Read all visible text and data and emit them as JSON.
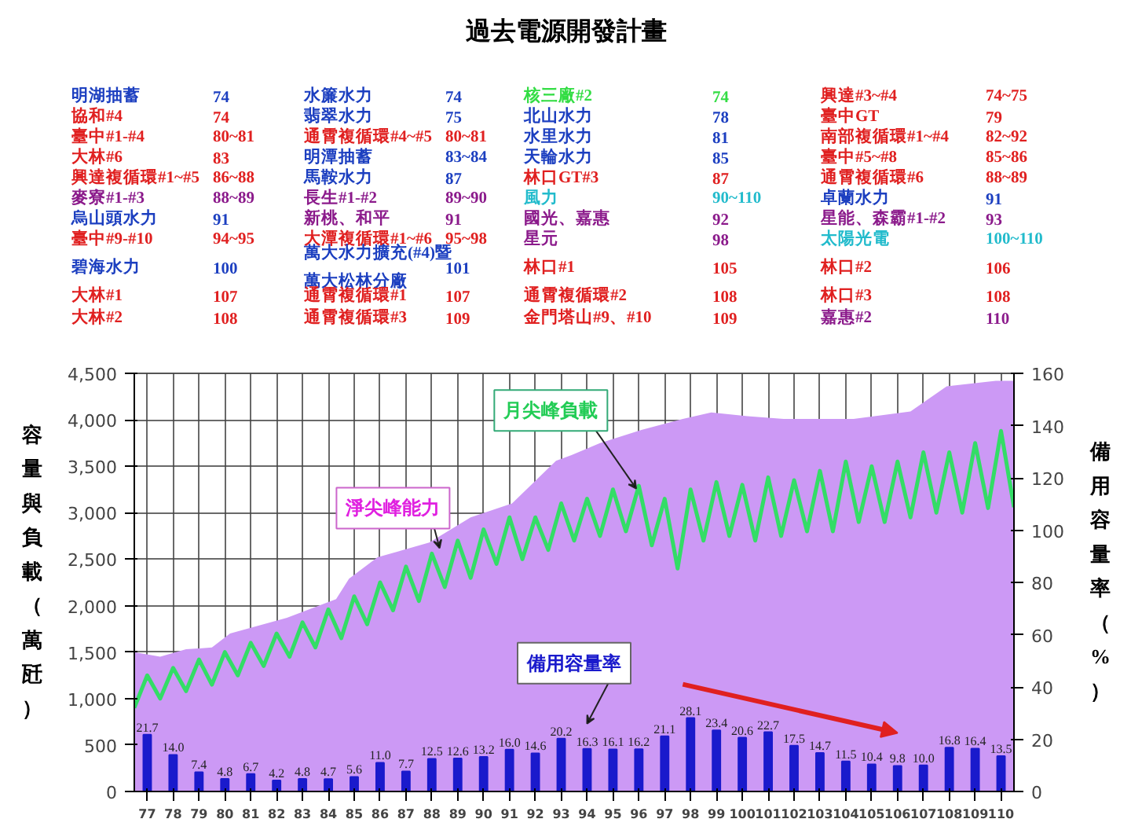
{
  "chart_data": {
    "type": "area",
    "title": "過去電源開發計畫",
    "ylabel": "容量與負載（萬瓩）",
    "y2label": "備用容量率（%）",
    "annotations": [
      "明湖抽蓄",
      "74",
      "水簾水力",
      "74",
      "核三廠#2",
      "74",
      "興達#3~#4",
      "74~75",
      "協和#4",
      "74",
      "翡翠水力",
      "75",
      "北山水力",
      "78",
      "臺中GT",
      "79",
      "臺中#1-#4",
      "80~81",
      "通霄複循環#4~#5",
      "80~81",
      "水里水力",
      "81",
      "南部複循環#1~#4",
      "82~92",
      "大林#6",
      "83",
      "明潭抽蓄",
      "83~84",
      "天輪水力",
      "85",
      "臺中#5~#8",
      "85~86",
      "興達複循環#1~#5",
      "86~88",
      "馬鞍水力",
      "87",
      "林口GT#3",
      "87",
      "通霄複循環#6",
      "88~89",
      "麥寮#1-#3",
      "88~89",
      "長生#1-#2",
      "89~90",
      "風力",
      "90~110",
      "卓蘭水力",
      "91",
      "烏山頭水力",
      "91",
      "新桃、和平",
      "91",
      "國光、嘉惠",
      "92",
      "星能、森霸#1-#2",
      "93",
      "臺中#9-#10",
      "94~95",
      "大潭複循環#1~#6",
      "95~98",
      "星元",
      "98",
      "太陽光電",
      "100~110",
      "碧海水力",
      "100",
      "萬大水力擴充(#4)暨萬大松林分廠",
      "101",
      "林口#1",
      "105",
      "林口#2",
      "106",
      "大林#1",
      "107",
      "通霄複循環#1",
      "107",
      "通霄複循環#2",
      "108",
      "林口#3",
      "108",
      "大林#2",
      "108",
      "通霄複循環#3",
      "109",
      "金門塔山#9、#10",
      "109",
      "嘉惠#2",
      "110"
    ],
    "xlim": [
      76.5,
      110.5
    ],
    "xticks": [
      77,
      78,
      79,
      80,
      81,
      82,
      83,
      84,
      85,
      86,
      87,
      88,
      89,
      90,
      91,
      92,
      93,
      94,
      95,
      96,
      97,
      98,
      99,
      100,
      101,
      102,
      103,
      104,
      105,
      106,
      107,
      108,
      109,
      110
    ],
    "ylim": [
      0,
      4500
    ],
    "yticks": [
      0,
      500,
      {
        "value": 1000,
        "label": "1,000"
      },
      {
        "value": 1500,
        "label": "1,500"
      },
      {
        "value": 2000,
        "label": "2,000"
      },
      {
        "value": 2500,
        "label": "2,500"
      },
      {
        "value": 3000,
        "label": "3,000"
      },
      {
        "value": 3500,
        "label": "3,500"
      },
      {
        "value": 4000,
        "label": "4,000"
      },
      {
        "value": 4500,
        "label": "4,500"
      }
    ],
    "y2lim": [
      0,
      160
    ],
    "y2ticks": [
      0,
      20,
      40,
      60,
      80,
      100,
      120,
      140,
      160
    ],
    "grid": true,
    "series": [
      {
        "name": "淨尖峰能力",
        "color": "#cc99f5",
        "x": [
          76.5,
          77.5,
          78.5,
          79.5,
          80.2,
          82.4,
          84.3,
          84.8,
          85.9,
          87.9,
          89.5,
          91.1,
          92.8,
          93.4,
          94.5,
          96.1,
          97.7,
          98.8,
          100.2,
          101.6,
          104.3,
          106.5,
          107.9,
          109.8,
          110.5
        ],
        "values": [
          1500,
          1450,
          1530,
          1550,
          1700,
          1870,
          2070,
          2290,
          2520,
          2680,
          2950,
          3100,
          3560,
          3620,
          3750,
          3890,
          4010,
          4080,
          4040,
          4010,
          4010,
          4090,
          4360,
          4420,
          4420
        ]
      },
      {
        "name": "月尖峰負載",
        "type": "line",
        "color": "#33dd66",
        "x": [
          76.5,
          77,
          77.5,
          78,
          78.5,
          79,
          79.5,
          80,
          80.5,
          81,
          81.5,
          82,
          82.5,
          83,
          83.5,
          84,
          84.5,
          85,
          85.5,
          86,
          86.5,
          87,
          87.5,
          88,
          88.5,
          89,
          89.5,
          90,
          90.5,
          91,
          91.5,
          92,
          92.5,
          93,
          93.5,
          94,
          94.5,
          95,
          95.5,
          96,
          96.5,
          97,
          97.5,
          98,
          98.5,
          99,
          99.5,
          100,
          100.5,
          101,
          101.5,
          102,
          102.5,
          103,
          103.5,
          104,
          104.5,
          105,
          105.5,
          106,
          106.5,
          107,
          107.5,
          108,
          108.5,
          109,
          109.5,
          110,
          110.5
        ],
        "values": [
          900,
          1250,
          1000,
          1330,
          1080,
          1420,
          1150,
          1500,
          1250,
          1600,
          1350,
          1700,
          1450,
          1820,
          1550,
          1960,
          1650,
          2100,
          1800,
          2250,
          1950,
          2420,
          2050,
          2560,
          2200,
          2700,
          2300,
          2820,
          2450,
          2950,
          2500,
          2950,
          2600,
          3100,
          2700,
          3150,
          2750,
          3250,
          2800,
          3290,
          2650,
          3150,
          2400,
          3250,
          2700,
          3330,
          2750,
          3300,
          2700,
          3380,
          2750,
          3350,
          2800,
          3450,
          2800,
          3550,
          2900,
          3500,
          2900,
          3550,
          2950,
          3650,
          3000,
          3650,
          3000,
          3750,
          3050,
          3880,
          3060
        ]
      },
      {
        "name": "備用容量率",
        "type": "bar",
        "axis": "y2",
        "color": "#1a1acc",
        "x": [
          77,
          78,
          79,
          80,
          81,
          82,
          83,
          84,
          85,
          86,
          87,
          88,
          89,
          90,
          91,
          92,
          93,
          94,
          95,
          96,
          97,
          98,
          99,
          100,
          101,
          102,
          103,
          104,
          105,
          106,
          107,
          108,
          109,
          110
        ],
        "values": [
          21.7,
          14.0,
          7.4,
          4.8,
          6.7,
          4.2,
          4.8,
          4.7,
          5.6,
          11.0,
          7.7,
          12.5,
          12.6,
          13.2,
          16.0,
          14.6,
          20.2,
          16.3,
          16.1,
          16.2,
          21.1,
          28.1,
          23.4,
          20.6,
          22.7,
          17.5,
          14.7,
          11.5,
          10.4,
          9.8,
          10.0,
          16.8,
          16.4,
          13.5
        ],
        "value_labels": [
          "21.7",
          "14.0",
          "7.4",
          "4.8",
          "6.7",
          "4.2",
          "4.8",
          "4.7",
          "5.6",
          "11.0",
          "7.7",
          "12.5",
          "12.6",
          "13.2",
          "16.0",
          "14.6",
          "20.2",
          "16.3",
          "16.1",
          "16.2",
          "21.1",
          "28.1",
          "23.4",
          "20.6",
          "22.7",
          "17.5",
          "14.7",
          "11.5",
          "10.4",
          "9.8",
          "10.0",
          "16.8",
          "16.4",
          "13.5"
        ]
      }
    ]
  }
}
